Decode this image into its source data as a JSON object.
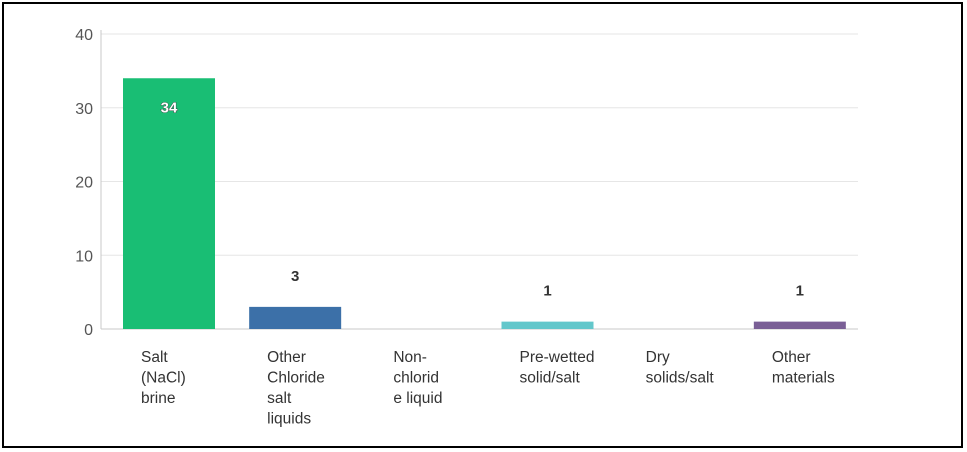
{
  "chart_data": {
    "type": "bar",
    "categories": [
      [
        "Salt",
        "(NaCl)",
        "brine"
      ],
      [
        "Other",
        "Chloride",
        "salt",
        "liquids"
      ],
      [
        "Non-",
        "chlorid",
        "e liquid"
      ],
      [
        "Pre-wetted",
        "solid/salt"
      ],
      [
        "Dry",
        "solids/salt"
      ],
      [
        "Other",
        "materials"
      ]
    ],
    "values": [
      34,
      3,
      0,
      1,
      0,
      1
    ],
    "data_labels": [
      "34",
      "3",
      "",
      "1",
      "",
      "1"
    ],
    "bar_colors": [
      "#19be74",
      "#3c70a8",
      "#888888",
      "#63c7cb",
      "#888888",
      "#7a5f96"
    ],
    "yticks": [
      "0",
      "10",
      "20",
      "30",
      "40"
    ],
    "ylim": [
      0,
      40
    ],
    "grid": true,
    "gridline_color": "#e6e6e6",
    "axis_color": "#c8c8c8"
  }
}
